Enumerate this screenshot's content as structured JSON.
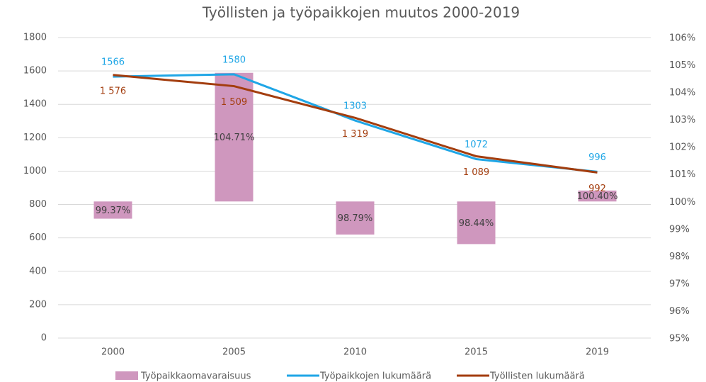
{
  "chart_data": {
    "type": "combo",
    "title": "Työllisten ja työpaikkojen muutos 2000-2019",
    "categories": [
      "2000",
      "2005",
      "2010",
      "2015",
      "2019"
    ],
    "series": [
      {
        "name": "Työpaikkaomavaraisuus",
        "type": "bar",
        "axis": "y2",
        "color": "#cf97be",
        "values": [
          99.37,
          104.71,
          98.79,
          98.44,
          100.4
        ],
        "value_labels": [
          "99.37%",
          "104.71%",
          "98.79%",
          "98.44%",
          "100.40%"
        ]
      },
      {
        "name": "Työpaikkojen lukumäärä",
        "type": "line",
        "color": "#1fa6e6",
        "values": [
          1566,
          1580,
          1303,
          1072,
          996
        ]
      },
      {
        "name": "Työllisten lukumäärä",
        "type": "line",
        "color": "#a33d0e",
        "values": [
          1576,
          1509,
          1319,
          1089,
          992
        ],
        "value_labels": [
          "1 576",
          "1 509",
          "1 319",
          "1 089",
          "992"
        ]
      }
    ],
    "ylim": [
      0,
      1800
    ],
    "yticks": [
      0,
      200,
      400,
      600,
      800,
      1000,
      1200,
      1400,
      1600,
      1800
    ],
    "y2lim": [
      95,
      106
    ],
    "y2ticks": [
      {
        "value": 95,
        "label": "95%"
      },
      {
        "value": 96,
        "label": "96%"
      },
      {
        "value": 97,
        "label": "97%"
      },
      {
        "value": 98,
        "label": "98%"
      },
      {
        "value": 99,
        "label": "99%"
      },
      {
        "value": 100,
        "label": "100%"
      },
      {
        "value": 101,
        "label": "101%"
      },
      {
        "value": 102,
        "label": "102%"
      },
      {
        "value": 103,
        "label": "103%"
      },
      {
        "value": 104,
        "label": "104%"
      },
      {
        "value": 105,
        "label": "105%"
      },
      {
        "value": 106,
        "label": "106%"
      }
    ],
    "grid": true,
    "legend": "bottom"
  }
}
